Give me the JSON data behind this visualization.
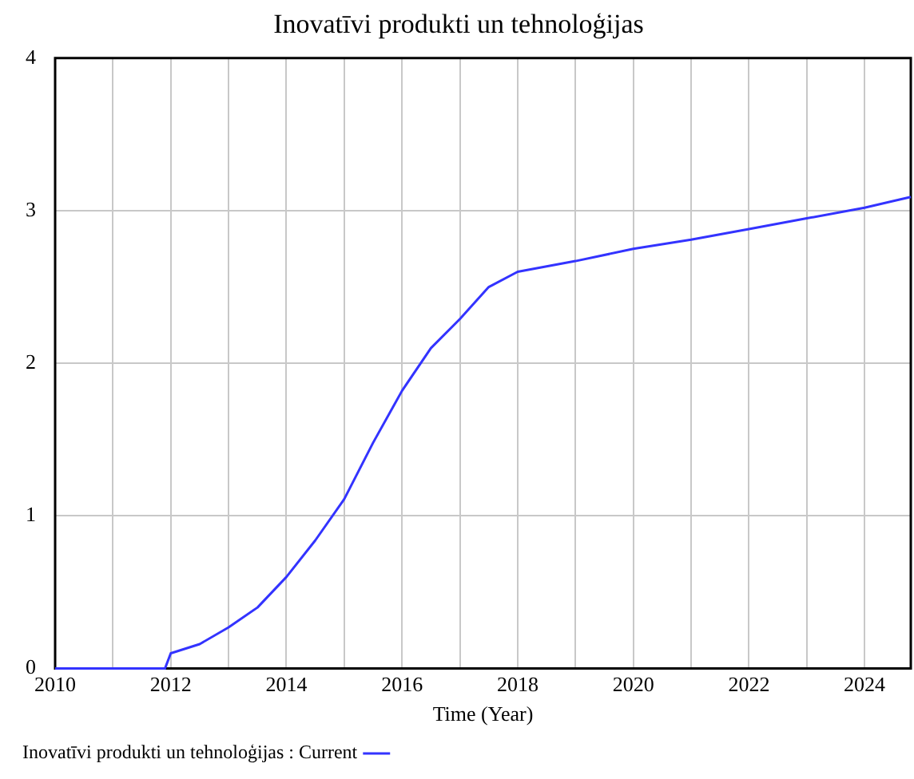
{
  "chart_data": {
    "type": "line",
    "title": "Inovatīvi produkti un tehnoloģijas",
    "xlabel": "Time (Year)",
    "x": [
      2010,
      2011.9,
      2012,
      2012.5,
      2013,
      2013.5,
      2014,
      2014.5,
      2015,
      2015.5,
      2016,
      2016.5,
      2017,
      2017.5,
      2018,
      2019,
      2020,
      2021,
      2022,
      2023,
      2024,
      2024.8
    ],
    "series": [
      {
        "name": "Inovatīvi produkti un tehnoloģijas : Current",
        "color": "#3333ff",
        "values": [
          0,
          0,
          0.1,
          0.16,
          0.27,
          0.4,
          0.6,
          0.84,
          1.11,
          1.48,
          1.82,
          2.1,
          2.29,
          2.5,
          2.6,
          2.67,
          2.75,
          2.81,
          2.88,
          2.95,
          3.02,
          3.09
        ]
      }
    ],
    "xlim": [
      2010,
      2024.8
    ],
    "xticks": [
      2010,
      {
        "value": 2011,
        "label": null
      },
      2012,
      {
        "value": 2013,
        "label": null
      },
      2014,
      {
        "value": 2015,
        "label": null
      },
      2016,
      {
        "value": 2017,
        "label": null
      },
      2018,
      {
        "value": 2019,
        "label": null
      },
      2020,
      {
        "value": 2021,
        "label": null
      },
      2022,
      {
        "value": 2023,
        "label": null
      },
      2024
    ],
    "ylim": [
      0,
      4
    ],
    "yticks": [
      0,
      1,
      2,
      3,
      4
    ],
    "grid": true,
    "legend": "bottom",
    "marker": "none",
    "line_style": "solid"
  }
}
